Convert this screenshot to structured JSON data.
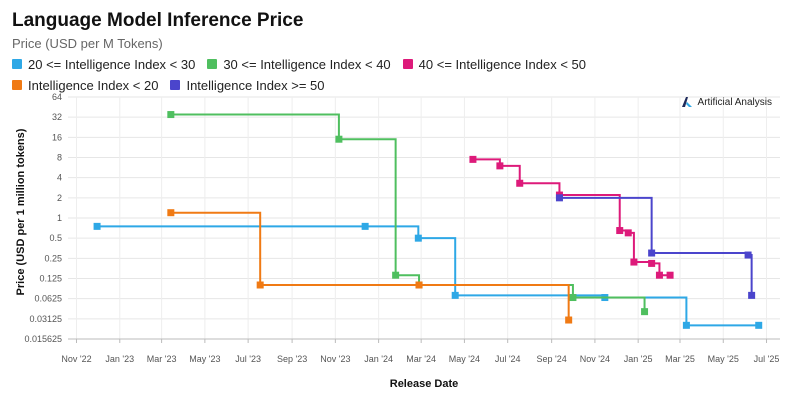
{
  "header": {
    "title": "Language Model Inference Price",
    "subtitle": "Price (USD per M Tokens)"
  },
  "watermark": {
    "text": "Artificial Analysis",
    "icon": "artificial-analysis-logo"
  },
  "colors": {
    "blue": "#2ea8e6",
    "green": "#4fbf5f",
    "pink": "#dd1a7a",
    "orange": "#f07a14",
    "purple": "#4b45cc"
  },
  "chart_data": {
    "type": "line",
    "step": true,
    "title": "Language Model Inference Price",
    "subtitle": "Price (USD per M Tokens)",
    "xlabel": "Release Date",
    "ylabel": "Price (USD per 1 million tokens)",
    "yscale": "log2",
    "ylim": [
      0.015625,
      64
    ],
    "xlim": [
      "2022-10-20",
      "2025-07-20"
    ],
    "y_ticks": [
      64,
      32,
      16,
      8,
      4,
      2,
      1,
      0.5,
      0.25,
      0.125,
      0.0625,
      0.03125,
      0.015625
    ],
    "y_tick_labels": [
      "64",
      "32",
      "16",
      "8",
      "4",
      "2",
      "1",
      "0.5",
      "0.25",
      "0.125",
      "0.0625",
      "0.03125",
      "0.015625"
    ],
    "x_ticks": [
      "2022-11-01",
      "2023-01-01",
      "2023-03-01",
      "2023-05-01",
      "2023-07-01",
      "2023-09-01",
      "2023-11-01",
      "2024-01-01",
      "2024-03-01",
      "2024-05-01",
      "2024-07-01",
      "2024-09-01",
      "2024-11-01",
      "2025-01-01",
      "2025-03-01",
      "2025-05-01",
      "2025-07-01"
    ],
    "x_tick_labels": [
      "Nov '22",
      "Jan '23",
      "Mar '23",
      "May '23",
      "Jul '23",
      "Sep '23",
      "Nov '23",
      "Jan '24",
      "Mar '24",
      "May '24",
      "Jul '24",
      "Sep '24",
      "Nov '24",
      "Jan '25",
      "Mar '25",
      "May '25",
      "Jul '25"
    ],
    "grid": true,
    "legend_position": "top",
    "series": [
      {
        "name": "20 <= Intelligence Index < 30",
        "color": "#2ea8e6",
        "points": [
          {
            "x": "2022-11-30",
            "y": 0.75
          },
          {
            "x": "2023-12-13",
            "y": 0.75
          },
          {
            "x": "2024-02-26",
            "y": 0.5
          },
          {
            "x": "2024-04-18",
            "y": 0.07
          },
          {
            "x": "2024-11-15",
            "y": 0.065
          },
          {
            "x": "2025-03-10",
            "y": 0.025
          },
          {
            "x": "2025-06-20",
            "y": 0.025
          }
        ]
      },
      {
        "name": "30 <= Intelligence Index < 40",
        "color": "#4fbf5f",
        "points": [
          {
            "x": "2023-03-14",
            "y": 35
          },
          {
            "x": "2023-11-06",
            "y": 15
          },
          {
            "x": "2024-01-25",
            "y": 0.14
          },
          {
            "x": "2024-02-27",
            "y": 0.1
          },
          {
            "x": "2024-10-01",
            "y": 0.065
          },
          {
            "x": "2025-01-10",
            "y": 0.04
          }
        ]
      },
      {
        "name": "40 <= Intelligence Index < 50",
        "color": "#dd1a7a",
        "points": [
          {
            "x": "2024-05-13",
            "y": 7.5
          },
          {
            "x": "2024-06-20",
            "y": 6
          },
          {
            "x": "2024-07-18",
            "y": 3.3
          },
          {
            "x": "2024-09-12",
            "y": 2.2
          },
          {
            "x": "2024-12-06",
            "y": 0.65
          },
          {
            "x": "2024-12-18",
            "y": 0.6
          },
          {
            "x": "2024-12-26",
            "y": 0.22
          },
          {
            "x": "2025-01-20",
            "y": 0.21
          },
          {
            "x": "2025-01-31",
            "y": 0.14
          },
          {
            "x": "2025-02-15",
            "y": 0.14
          }
        ]
      },
      {
        "name": "Intelligence Index < 20",
        "color": "#f07a14",
        "points": [
          {
            "x": "2023-03-14",
            "y": 1.2
          },
          {
            "x": "2023-07-18",
            "y": 0.1
          },
          {
            "x": "2024-02-27",
            "y": 0.1
          },
          {
            "x": "2024-09-25",
            "y": 0.03
          }
        ]
      },
      {
        "name": "Intelligence Index >= 50",
        "color": "#4b45cc",
        "points": [
          {
            "x": "2024-09-12",
            "y": 2
          },
          {
            "x": "2025-01-20",
            "y": 0.3
          },
          {
            "x": "2025-06-05",
            "y": 0.28
          },
          {
            "x": "2025-06-10",
            "y": 0.07
          }
        ]
      }
    ]
  }
}
